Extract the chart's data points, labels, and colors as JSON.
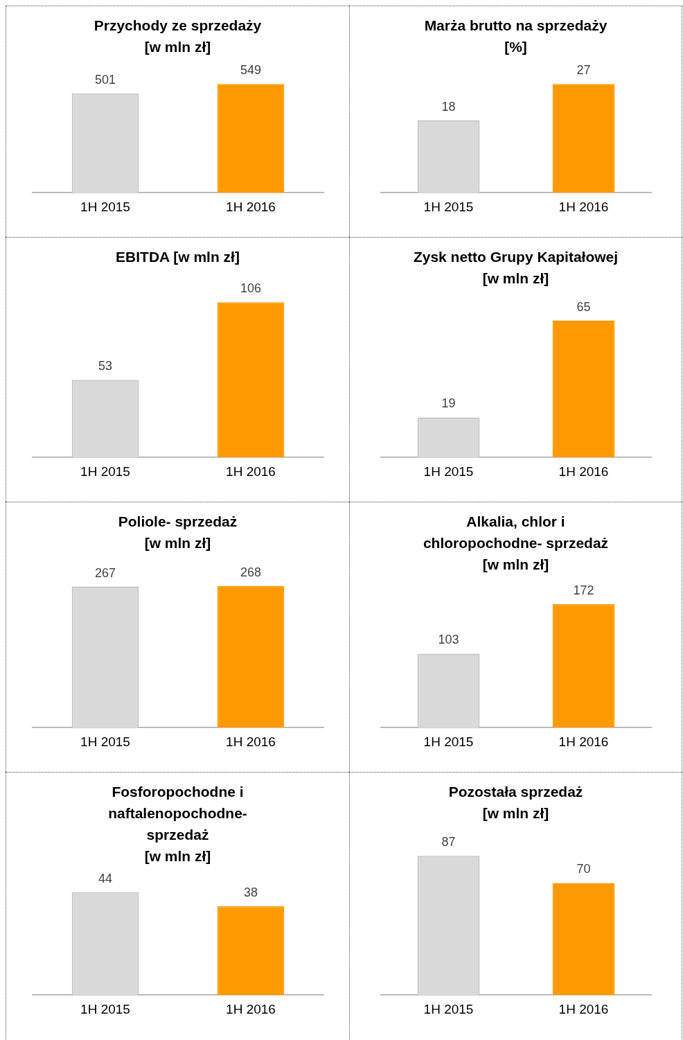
{
  "chart_data": [
    {
      "type": "bar",
      "title": "Przychody ze sprzedaży\n[w mln zł]",
      "categories": [
        "1H 2015",
        "1H 2016"
      ],
      "values": [
        501,
        549
      ],
      "colors": [
        "#d9d9d9",
        "#ff9900"
      ],
      "data_labels": true,
      "grid": false,
      "legend": false,
      "tick_labels": "x"
    },
    {
      "type": "bar",
      "title": "Marża brutto na sprzedaży\n[%]",
      "categories": [
        "1H 2015",
        "1H 2016"
      ],
      "values": [
        18,
        27
      ],
      "colors": [
        "#d9d9d9",
        "#ff9900"
      ],
      "data_labels": true,
      "grid": false,
      "legend": false,
      "tick_labels": "x"
    },
    {
      "type": "bar",
      "title": "EBITDA [w mln zł]",
      "categories": [
        "1H 2015",
        "1H 2016"
      ],
      "values": [
        53,
        106
      ],
      "colors": [
        "#d9d9d9",
        "#ff9900"
      ],
      "data_labels": true,
      "grid": false,
      "legend": false,
      "tick_labels": "x"
    },
    {
      "type": "bar",
      "title": "Zysk netto Grupy Kapitałowej\n[w mln zł]",
      "categories": [
        "1H 2015",
        "1H 2016"
      ],
      "values": [
        19,
        65
      ],
      "colors": [
        "#d9d9d9",
        "#ff9900"
      ],
      "data_labels": true,
      "grid": false,
      "legend": false,
      "tick_labels": "x"
    },
    {
      "type": "bar",
      "title": "Poliole- sprzedaż\n[w mln zł]",
      "categories": [
        "1H 2015",
        "1H 2016"
      ],
      "values": [
        267,
        268
      ],
      "colors": [
        "#d9d9d9",
        "#ff9900"
      ],
      "data_labels": true,
      "grid": false,
      "legend": false,
      "tick_labels": "x"
    },
    {
      "type": "bar",
      "title": "Alkalia, chlor i\nchloropochodne- sprzedaż\n[w mln zł]",
      "categories": [
        "1H 2015",
        "1H 2016"
      ],
      "values": [
        103,
        172
      ],
      "colors": [
        "#d9d9d9",
        "#ff9900"
      ],
      "data_labels": true,
      "grid": false,
      "legend": false,
      "tick_labels": "x"
    },
    {
      "type": "bar",
      "title": "Fosforopochodne i\nnaftalenopochodne-\nsprzedaż\n[w mln zł]",
      "categories": [
        "1H 2015",
        "1H 2016"
      ],
      "values": [
        44,
        38
      ],
      "colors": [
        "#d9d9d9",
        "#ff9900"
      ],
      "data_labels": true,
      "grid": false,
      "legend": false,
      "tick_labels": "x"
    },
    {
      "type": "bar",
      "title": "Pozostała sprzedaż\n[w mln zł]",
      "categories": [
        "1H 2015",
        "1H 2016"
      ],
      "values": [
        87,
        70
      ],
      "colors": [
        "#d9d9d9",
        "#ff9900"
      ],
      "data_labels": true,
      "grid": false,
      "legend": false,
      "tick_labels": "x"
    }
  ]
}
